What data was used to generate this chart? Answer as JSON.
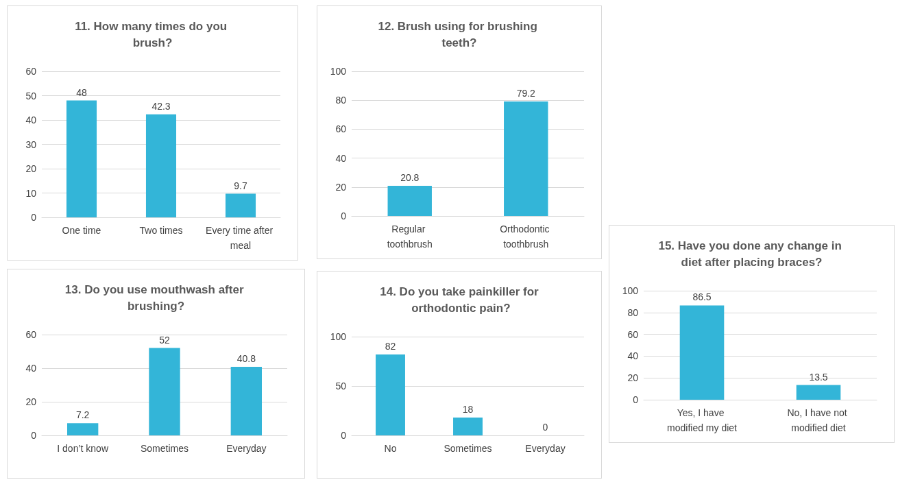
{
  "chart_data": [
    {
      "type": "bar",
      "title": "11. How many times do you brush?",
      "categories": [
        "One time",
        "Two times",
        "Every time after meal"
      ],
      "values": [
        48,
        42.3,
        9.7
      ],
      "color": "#33b5d8",
      "ylim": [
        0,
        60
      ],
      "yticks": [
        0,
        10,
        20,
        30,
        40,
        50,
        60
      ],
      "grid": "y",
      "data_labels": true
    },
    {
      "type": "bar",
      "title": "12. Brush using for brushing teeth?",
      "categories": [
        "Regular toothbrush",
        "Orthodontic toothbrush"
      ],
      "values": [
        20.8,
        79.2
      ],
      "color": "#33b5d8",
      "ylim": [
        0,
        100
      ],
      "yticks": [
        0,
        20,
        40,
        60,
        80,
        100
      ],
      "grid": "y",
      "data_labels": true
    },
    {
      "type": "bar",
      "title": "13. Do you use mouthwash after brushing?",
      "categories": [
        "I don’t know",
        "Sometimes",
        "Everyday"
      ],
      "values": [
        7.2,
        52,
        40.8
      ],
      "color": "#33b5d8",
      "ylim": [
        0,
        60
      ],
      "yticks": [
        0,
        20,
        40,
        60
      ],
      "grid": "y",
      "data_labels": true
    },
    {
      "type": "bar",
      "title": "14. Do you take painkiller for orthodontic pain?",
      "categories": [
        "No",
        "Sometimes",
        "Everyday"
      ],
      "values": [
        82,
        18,
        0
      ],
      "color": "#33b5d8",
      "ylim": [
        0,
        100
      ],
      "yticks": [
        0,
        50,
        100
      ],
      "grid": "y",
      "data_labels": true
    },
    {
      "type": "bar",
      "title": "15. Have you done any change in diet after placing braces?",
      "categories": [
        "Yes, I have modified my diet",
        "No, I have not modified diet"
      ],
      "values": [
        86.5,
        13.5
      ],
      "color": "#33b5d8",
      "ylim": [
        0,
        100
      ],
      "yticks": [
        0,
        20,
        40,
        60,
        80,
        100
      ],
      "grid": "y",
      "data_labels": true
    }
  ]
}
